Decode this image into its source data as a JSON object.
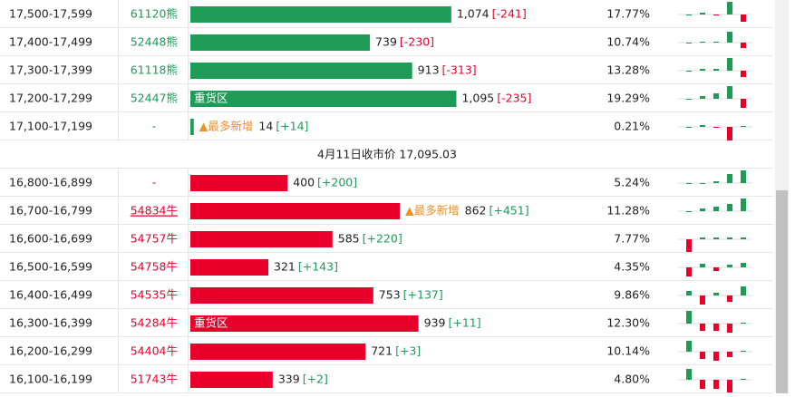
{
  "rows": [
    {
      "range": "17,500-17,599",
      "code": "61120熊",
      "side": "bear",
      "value": 1074,
      "value_label": "1,074",
      "change": "[-241]",
      "pct": "17.77%",
      "spark": [
        0,
        2,
        -1,
        14,
        -8
      ]
    },
    {
      "range": "17,400-17,499",
      "code": "52448熊",
      "side": "bear",
      "value": 739,
      "value_label": "739",
      "change": "[-230]",
      "pct": "10.74%",
      "spark": [
        0,
        1,
        1,
        12,
        -6
      ]
    },
    {
      "range": "17,300-17,399",
      "code": "61118熊",
      "side": "bear",
      "value": 913,
      "value_label": "913",
      "change": "[-313]",
      "pct": "13.28%",
      "spark": [
        0,
        2,
        2,
        14,
        -7
      ]
    },
    {
      "range": "17,200-17,299",
      "code": "52447熊",
      "side": "bear",
      "tag": "重货区",
      "value": 1095,
      "value_label": "1,095",
      "change": "[-235]",
      "pct": "19.29%",
      "spark": [
        0,
        3,
        6,
        14,
        -10
      ]
    },
    {
      "range": "17,100-17,199",
      "code": "-",
      "side": "bear",
      "note": "▲最多新增",
      "value": 14,
      "value_label": "14",
      "change": "[+14]",
      "pct": "0.21%",
      "spark": [
        0,
        2,
        -1,
        -15,
        1
      ]
    },
    {
      "range": "16,800-16,899",
      "code": "-",
      "side": "bull",
      "value": 400,
      "value_label": "400",
      "change": "[+200]",
      "pct": "5.24%",
      "spark": [
        0,
        0,
        2,
        10,
        14
      ]
    },
    {
      "range": "16,700-16,799",
      "code": "54834牛",
      "side": "bull",
      "note": "▲最多新增",
      "value": 862,
      "value_label": "862",
      "change": "[+451]",
      "pct": "11.28%",
      "spark": [
        0,
        3,
        5,
        8,
        14
      ]
    },
    {
      "range": "16,600-16,699",
      "code": "54757牛",
      "side": "bull",
      "value": 585,
      "value_label": "585",
      "change": "[+220]",
      "pct": "7.77%",
      "spark": [
        -14,
        2,
        2,
        2,
        2
      ]
    },
    {
      "range": "16,500-16,599",
      "code": "54758牛",
      "side": "bull",
      "value": 321,
      "value_label": "321",
      "change": "[+143]",
      "pct": "4.35%",
      "spark": [
        -10,
        4,
        -4,
        3,
        5
      ]
    },
    {
      "range": "16,400-16,499",
      "code": "54535牛",
      "side": "bull",
      "value": 753,
      "value_label": "753",
      "change": "[+137]",
      "pct": "9.86%",
      "spark": [
        5,
        -10,
        3,
        -7,
        10
      ]
    },
    {
      "range": "16,300-16,399",
      "code": "54284牛",
      "side": "bull",
      "tag": "重货区",
      "value": 939,
      "value_label": "939",
      "change": "[+11]",
      "pct": "12.30%",
      "spark": [
        14,
        -8,
        -8,
        -10,
        1
      ]
    },
    {
      "range": "16,200-16,299",
      "code": "54404牛",
      "side": "bull",
      "value": 721,
      "value_label": "721",
      "change": "[+3]",
      "pct": "10.14%",
      "spark": [
        12,
        -8,
        -10,
        -6,
        1
      ]
    },
    {
      "range": "16,100-16,199",
      "code": "51743牛",
      "side": "bull",
      "value": 339,
      "value_label": "339",
      "change": "[+2]",
      "pct": "4.80%",
      "spark": [
        12,
        -10,
        -10,
        -14,
        1
      ]
    }
  ],
  "separator": "4月11日收市价 17,095.03"
}
